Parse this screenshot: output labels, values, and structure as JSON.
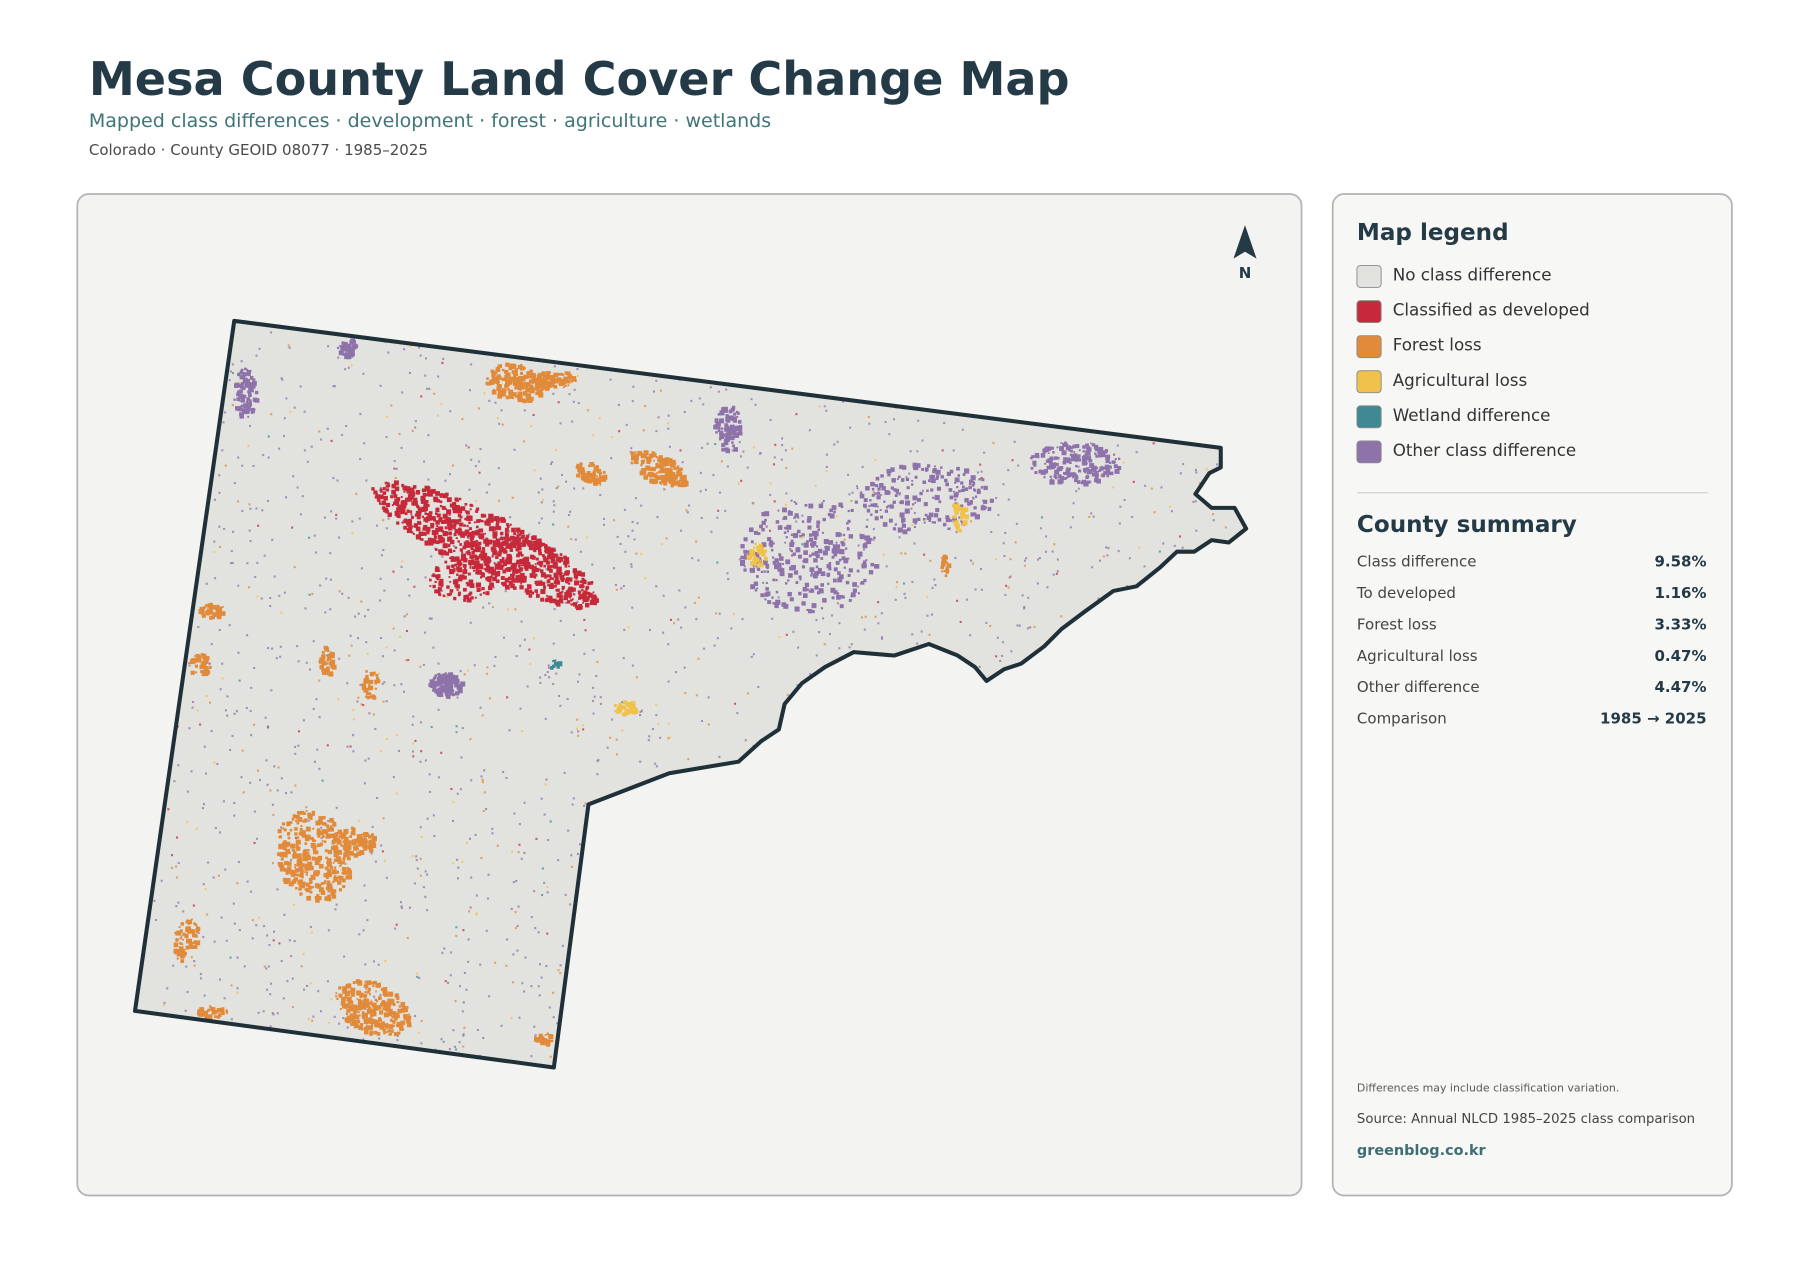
{
  "header": {
    "title": "Mesa County Land Cover Change Map",
    "subtitle": "Mapped class differences · development · forest · agriculture · wetlands",
    "meta": "Colorado · County GEOID 08077 · 1985–2025"
  },
  "map": {
    "north_label": "N"
  },
  "legend": {
    "title": "Map legend",
    "items": [
      {
        "label": "No class difference",
        "color": "#e2e2de"
      },
      {
        "label": "Classified as developed",
        "color": "#c62a3a"
      },
      {
        "label": "Forest loss",
        "color": "#e08a3a"
      },
      {
        "label": "Agricultural loss",
        "color": "#f0c24a"
      },
      {
        "label": "Wetland difference",
        "color": "#3f8a92"
      },
      {
        "label": "Other class difference",
        "color": "#8e72aa"
      }
    ]
  },
  "summary": {
    "title": "County summary",
    "rows": [
      {
        "label": "Class difference",
        "value": "9.58%"
      },
      {
        "label": "To developed",
        "value": "1.16%"
      },
      {
        "label": "Forest loss",
        "value": "3.33%"
      },
      {
        "label": "Agricultural loss",
        "value": "0.47%"
      },
      {
        "label": "Other difference",
        "value": "4.47%"
      },
      {
        "label": "Comparison",
        "value": "1985 → 2025"
      }
    ]
  },
  "footer": {
    "note": "Differences may include classification variation.",
    "source": "Source: Annual NLCD 1985–2025 class comparison",
    "site": "greenblog.co.kr"
  }
}
